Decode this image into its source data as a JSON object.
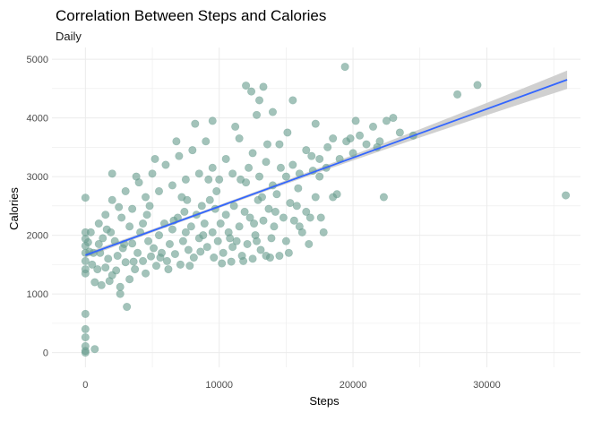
{
  "chart_data": {
    "type": "scatter",
    "title": "Correlation Between Steps and Calories",
    "subtitle": "Daily",
    "xlabel": "Steps",
    "ylabel": "Calories",
    "xlim": [
      -2500,
      37000
    ],
    "ylim": [
      -250,
      5200
    ],
    "xticks": [
      0,
      10000,
      20000,
      30000
    ],
    "xtick_labels": [
      "0",
      "10000",
      "20000",
      "30000"
    ],
    "yticks": [
      0,
      1000,
      2000,
      3000,
      4000,
      5000
    ],
    "ytick_labels": [
      "0",
      "1000",
      "2000",
      "3000",
      "4000",
      "5000"
    ],
    "grid": true,
    "legend": "none",
    "colors": {
      "points": "#6a9e8f",
      "trend": "#3366ff",
      "band": "#c8c8c8",
      "grid": "#ebebeb"
    },
    "trend_line": {
      "type": "linear",
      "x": [
        0,
        36000
      ],
      "y": [
        1660,
        4650
      ],
      "confidence_band": true
    },
    "points": [
      [
        0,
        0
      ],
      [
        0,
        30
      ],
      [
        0,
        110
      ],
      [
        0,
        260
      ],
      [
        0,
        400
      ],
      [
        0,
        660
      ],
      [
        0,
        1350
      ],
      [
        0,
        1420
      ],
      [
        0,
        1560
      ],
      [
        0,
        1700
      ],
      [
        0,
        1820
      ],
      [
        0,
        1940
      ],
      [
        0,
        2050
      ],
      [
        0,
        2640
      ],
      [
        700,
        60
      ],
      [
        200,
        1880
      ],
      [
        300,
        1720
      ],
      [
        500,
        1500
      ],
      [
        700,
        1200
      ],
      [
        900,
        1420
      ],
      [
        1100,
        1700
      ],
      [
        1300,
        1950
      ],
      [
        1500,
        1450
      ],
      [
        1600,
        2100
      ],
      [
        1800,
        1220
      ],
      [
        2000,
        1320
      ],
      [
        2200,
        1900
      ],
      [
        2400,
        1650
      ],
      [
        2600,
        1120
      ],
      [
        2800,
        1780
      ],
      [
        3000,
        1540
      ],
      [
        3100,
        780
      ],
      [
        3300,
        1250
      ],
      [
        3500,
        1860
      ],
      [
        3700,
        1420
      ],
      [
        3900,
        1700
      ],
      [
        4100,
        2050
      ],
      [
        4300,
        1560
      ],
      [
        4500,
        1350
      ],
      [
        4700,
        1900
      ],
      [
        4900,
        1640
      ],
      [
        5100,
        1780
      ],
      [
        5300,
        1480
      ],
      [
        5500,
        2000
      ],
      [
        5700,
        1700
      ],
      [
        5900,
        2200
      ],
      [
        6100,
        1560
      ],
      [
        6300,
        1850
      ],
      [
        6500,
        2100
      ],
      [
        6700,
        1680
      ],
      [
        6900,
        2300
      ],
      [
        7100,
        1500
      ],
      [
        7300,
        1900
      ],
      [
        7500,
        2050
      ],
      [
        7700,
        1750
      ],
      [
        7900,
        2150
      ],
      [
        8100,
        1620
      ],
      [
        8300,
        2350
      ],
      [
        8500,
        1950
      ],
      [
        8700,
        2500
      ],
      [
        8900,
        2200
      ],
      [
        9100,
        1800
      ],
      [
        9300,
        2600
      ],
      [
        9500,
        2050
      ],
      [
        9700,
        2450
      ],
      [
        9900,
        1900
      ],
      [
        10100,
        2200
      ],
      [
        10300,
        1700
      ],
      [
        10500,
        2350
      ],
      [
        10700,
        2050
      ],
      [
        10900,
        1550
      ],
      [
        11100,
        2500
      ],
      [
        11300,
        1900
      ],
      [
        11500,
        2150
      ],
      [
        11700,
        1650
      ],
      [
        11900,
        2400
      ],
      [
        12100,
        1850
      ],
      [
        12300,
        2300
      ],
      [
        12500,
        1600
      ],
      [
        12700,
        2000
      ],
      [
        12900,
        2600
      ],
      [
        13100,
        1750
      ],
      [
        13300,
        2250
      ],
      [
        13500,
        1650
      ],
      [
        13700,
        2450
      ],
      [
        13900,
        1950
      ],
      [
        14100,
        2150
      ],
      [
        14300,
        2700
      ],
      [
        14500,
        1650
      ],
      [
        14800,
        2300
      ],
      [
        15000,
        1900
      ],
      [
        15300,
        2550
      ],
      [
        15600,
        2250
      ],
      [
        15900,
        2800
      ],
      [
        16200,
        2050
      ],
      [
        16500,
        2400
      ],
      [
        16800,
        2300
      ],
      [
        17200,
        2650
      ],
      [
        17600,
        2300
      ],
      [
        1000,
        2200
      ],
      [
        1500,
        2350
      ],
      [
        2000,
        2600
      ],
      [
        2500,
        2480
      ],
      [
        3000,
        2750
      ],
      [
        3500,
        2450
      ],
      [
        4000,
        2900
      ],
      [
        4500,
        2650
      ],
      [
        5000,
        3050
      ],
      [
        5500,
        2750
      ],
      [
        6000,
        3200
      ],
      [
        6500,
        2850
      ],
      [
        7000,
        3350
      ],
      [
        7500,
        2950
      ],
      [
        8000,
        3450
      ],
      [
        8500,
        3050
      ],
      [
        9000,
        3600
      ],
      [
        9500,
        3150
      ],
      [
        10000,
        2950
      ],
      [
        10500,
        3300
      ],
      [
        11000,
        3050
      ],
      [
        11500,
        3650
      ],
      [
        12000,
        2900
      ],
      [
        12500,
        3400
      ],
      [
        13000,
        3000
      ],
      [
        13500,
        3250
      ],
      [
        14000,
        2850
      ],
      [
        14500,
        3550
      ],
      [
        15000,
        3000
      ],
      [
        15500,
        3200
      ],
      [
        16000,
        3050
      ],
      [
        16500,
        3450
      ],
      [
        17000,
        3100
      ],
      [
        17500,
        3300
      ],
      [
        18000,
        3150
      ],
      [
        18500,
        3650
      ],
      [
        19000,
        3300
      ],
      [
        19500,
        3600
      ],
      [
        20000,
        3400
      ],
      [
        20500,
        3700
      ],
      [
        21000,
        3550
      ],
      [
        21500,
        3850
      ],
      [
        22000,
        3600
      ],
      [
        22500,
        3950
      ],
      [
        23000,
        4000
      ],
      [
        23500,
        3750
      ],
      [
        12000,
        4550
      ],
      [
        12400,
        4450
      ],
      [
        13300,
        4530
      ],
      [
        13000,
        4300
      ],
      [
        12800,
        4050
      ],
      [
        9500,
        3950
      ],
      [
        11200,
        3850
      ],
      [
        14000,
        4100
      ],
      [
        15500,
        4300
      ],
      [
        17200,
        3900
      ],
      [
        19400,
        4870
      ],
      [
        27800,
        4400
      ],
      [
        29300,
        4560
      ],
      [
        35900,
        2680
      ],
      [
        22300,
        2650
      ],
      [
        21800,
        3500
      ],
      [
        20200,
        3950
      ],
      [
        18500,
        2650
      ],
      [
        17800,
        2050
      ],
      [
        16000,
        2150
      ],
      [
        5200,
        3300
      ],
      [
        6800,
        3600
      ],
      [
        8200,
        3900
      ],
      [
        4300,
        2200
      ],
      [
        7600,
        2600
      ],
      [
        9800,
        2750
      ],
      [
        11600,
        2950
      ],
      [
        3800,
        3000
      ],
      [
        2000,
        3050
      ],
      [
        2600,
        1000
      ],
      [
        1200,
        1150
      ],
      [
        6200,
        1420
      ],
      [
        7800,
        1480
      ],
      [
        10200,
        1520
      ],
      [
        11800,
        1560
      ],
      [
        13800,
        1620
      ],
      [
        15200,
        1700
      ],
      [
        16700,
        1850
      ],
      [
        14600,
        3150
      ],
      [
        1900,
        2050
      ],
      [
        2900,
        1850
      ],
      [
        4600,
        2350
      ],
      [
        7200,
        2650
      ],
      [
        9200,
        2950
      ],
      [
        12200,
        3150
      ],
      [
        13600,
        3550
      ],
      [
        15100,
        3750
      ],
      [
        16900,
        3350
      ],
      [
        18100,
        3500
      ],
      [
        17500,
        3000
      ],
      [
        12600,
        2200
      ],
      [
        10800,
        1950
      ],
      [
        8600,
        1720
      ],
      [
        5600,
        1620
      ],
      [
        3600,
        1550
      ],
      [
        2300,
        1400
      ],
      [
        1700,
        1600
      ],
      [
        600,
        1700
      ],
      [
        400,
        2050
      ],
      [
        1000,
        1850
      ],
      [
        2700,
        2300
      ],
      [
        3300,
        2150
      ],
      [
        4800,
        2500
      ],
      [
        6600,
        2250
      ],
      [
        7400,
        2400
      ],
      [
        8800,
        2000
      ],
      [
        9600,
        1620
      ],
      [
        11000,
        1800
      ],
      [
        12800,
        1900
      ],
      [
        13200,
        2650
      ],
      [
        14200,
        2400
      ],
      [
        15800,
        2500
      ],
      [
        18800,
        2700
      ],
      [
        19800,
        3650
      ],
      [
        24500,
        3700
      ]
    ]
  }
}
